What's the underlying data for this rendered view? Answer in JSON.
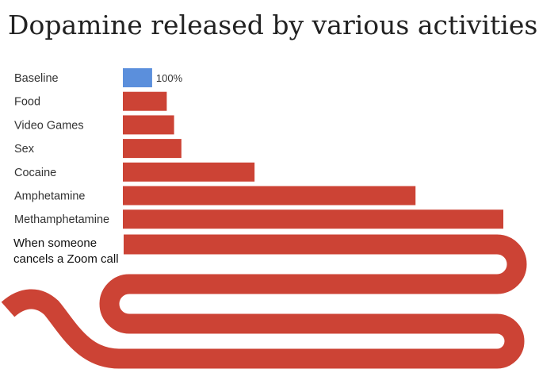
{
  "chart_data": {
    "type": "bar",
    "orientation": "horizontal",
    "title": "Dopamine released by various activities",
    "categories": [
      "Baseline",
      "Food",
      "Video Games",
      "Sex",
      "Cocaine",
      "Amphetamine",
      "Methamphetamine"
    ],
    "values": [
      100,
      150,
      175,
      200,
      450,
      1000,
      1300
    ],
    "data_labels": [
      "100%",
      "",
      "",
      "",
      "",
      "",
      ""
    ],
    "colors": [
      "#5b8fdc",
      "#cc4335",
      "#cc4335",
      "#cc4335",
      "#cc4335",
      "#cc4335",
      "#cc4335"
    ],
    "xlim": [
      0,
      1300
    ],
    "grid": false,
    "legend": "none",
    "meme_bar": {
      "label_lines": [
        "When someone",
        "cancels a Zoom call"
      ],
      "color": "#cc4335"
    }
  }
}
